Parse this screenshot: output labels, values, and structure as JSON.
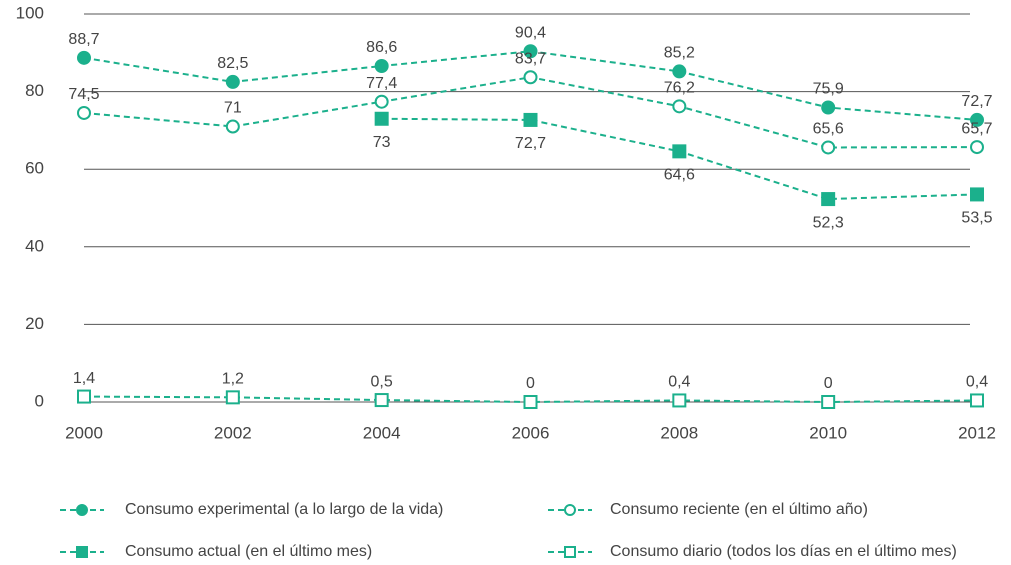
{
  "chart_data": {
    "type": "line",
    "x": [
      2000,
      2002,
      2004,
      2006,
      2008,
      2010,
      2012
    ],
    "xlim": [
      2000,
      2012
    ],
    "xticks": [
      2000,
      2002,
      2004,
      2006,
      2008,
      2010,
      2012
    ],
    "ylim": [
      0,
      100
    ],
    "yticks": [
      0,
      20,
      40,
      60,
      80,
      100
    ],
    "grid": true,
    "legend": "bottom",
    "series": [
      {
        "name": "Consumo experimental (a lo largo de la vida)",
        "color": "#1bb08c",
        "marker": "circle",
        "filled": true,
        "values": [
          88.7,
          82.5,
          86.6,
          90.4,
          85.2,
          75.9,
          72.7
        ],
        "value_labels": [
          "88,7",
          "82,5",
          "86,6",
          "90,4",
          "85,2",
          "75,9",
          "72,7"
        ]
      },
      {
        "name": "Consumo reciente (en el último año)",
        "color": "#1bb08c",
        "marker": "circle",
        "filled": false,
        "values": [
          74.5,
          71,
          77.4,
          83.7,
          76.2,
          65.6,
          65.7
        ],
        "value_labels": [
          "74,5",
          "71",
          "77,4",
          "83,7",
          "76,2",
          "65,6",
          "65,7"
        ]
      },
      {
        "name": "Consumo actual (en el último mes)",
        "color": "#1bb08c",
        "marker": "square",
        "filled": true,
        "values": [
          null,
          null,
          73,
          72.7,
          64.6,
          52.3,
          53.5
        ],
        "value_labels": [
          null,
          null,
          "73",
          "72,7",
          "64,6",
          "52,3",
          "53,5"
        ]
      },
      {
        "name": "Consumo diario (todos los días en el último mes)",
        "color": "#1bb08c",
        "marker": "square",
        "filled": false,
        "values": [
          1.4,
          1.2,
          0.5,
          0,
          0.4,
          0,
          0.4
        ],
        "value_labels": [
          "1,4",
          "1,2",
          "0,5",
          "0",
          "0,4",
          "0",
          "0,4"
        ]
      }
    ]
  }
}
